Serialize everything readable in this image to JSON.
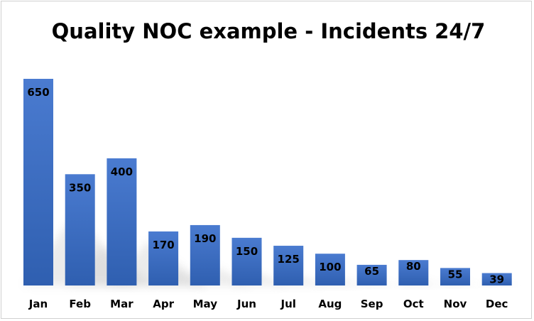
{
  "chart_data": {
    "type": "bar",
    "title": "Quality NOC example - Incidents 24/7",
    "xlabel": "",
    "ylabel": "",
    "categories": [
      "Jan",
      "Feb",
      "Mar",
      "Apr",
      "May",
      "Jun",
      "Jul",
      "Aug",
      "Sep",
      "Oct",
      "Nov",
      "Dec"
    ],
    "values": [
      650,
      350,
      400,
      170,
      190,
      150,
      125,
      100,
      65,
      80,
      55,
      39
    ],
    "ylim": [
      0,
      700
    ],
    "grid": false,
    "legend": "none",
    "colors": {
      "bar_top": "#4a7bd0",
      "bar_bottom": "#2f5fb0",
      "shadow": "#c8c8c8"
    }
  }
}
